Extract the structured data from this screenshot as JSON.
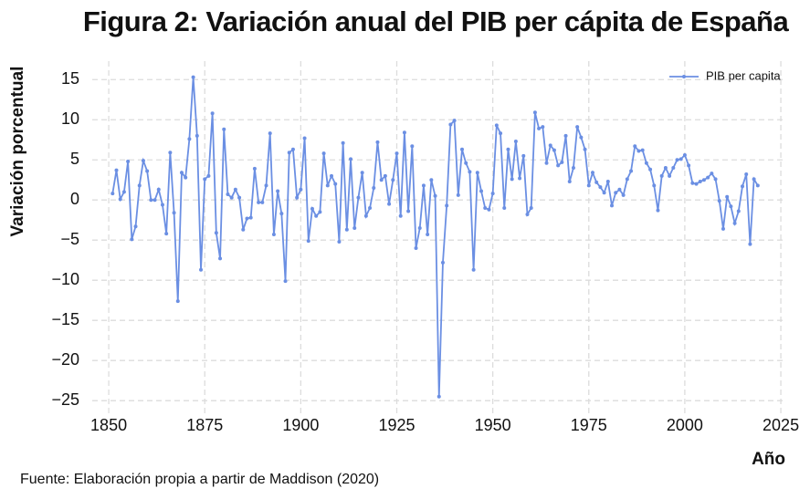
{
  "chart_data": {
    "type": "line",
    "title": "Figura 2: Variación anual del PIB per cápita de España",
    "xlabel": "Año",
    "ylabel": "Variación porcentual",
    "source": "Fuente: Elaboración propia a partir de Maddison (2020)",
    "x": [
      1851,
      1852,
      1853,
      1854,
      1855,
      1856,
      1857,
      1858,
      1859,
      1860,
      1861,
      1862,
      1863,
      1864,
      1865,
      1866,
      1867,
      1868,
      1869,
      1870,
      1871,
      1872,
      1873,
      1874,
      1875,
      1876,
      1877,
      1878,
      1879,
      1880,
      1881,
      1882,
      1883,
      1884,
      1885,
      1886,
      1887,
      1888,
      1889,
      1890,
      1891,
      1892,
      1893,
      1894,
      1895,
      1896,
      1897,
      1898,
      1899,
      1900,
      1901,
      1902,
      1903,
      1904,
      1905,
      1906,
      1907,
      1908,
      1909,
      1910,
      1911,
      1912,
      1913,
      1914,
      1915,
      1916,
      1917,
      1918,
      1919,
      1920,
      1921,
      1922,
      1923,
      1924,
      1925,
      1926,
      1927,
      1928,
      1929,
      1930,
      1931,
      1932,
      1933,
      1934,
      1935,
      1936,
      1937,
      1938,
      1939,
      1940,
      1941,
      1942,
      1943,
      1944,
      1945,
      1946,
      1947,
      1948,
      1949,
      1950,
      1951,
      1952,
      1953,
      1954,
      1955,
      1956,
      1957,
      1958,
      1959,
      1960,
      1961,
      1962,
      1963,
      1964,
      1965,
      1966,
      1967,
      1968,
      1969,
      1970,
      1971,
      1972,
      1973,
      1974,
      1975,
      1976,
      1977,
      1978,
      1979,
      1980,
      1981,
      1982,
      1983,
      1984,
      1985,
      1986,
      1987,
      1988,
      1989,
      1990,
      1991,
      1992,
      1993,
      1994,
      1995,
      1996,
      1997,
      1998,
      1999,
      2000,
      2001,
      2002,
      2003,
      2004,
      2005,
      2006,
      2007,
      2008,
      2009,
      2010,
      2011,
      2012,
      2013,
      2014,
      2015,
      2016,
      2017,
      2018,
      2019
    ],
    "series": [
      {
        "name": "PIB per capita",
        "color": "#6b8fe3",
        "values": [
          0.8,
          3.7,
          0.1,
          1.0,
          4.8,
          -4.9,
          -3.3,
          1.8,
          4.9,
          3.6,
          0.0,
          0.0,
          1.3,
          -0.6,
          -4.2,
          5.9,
          -1.6,
          -12.6,
          3.4,
          2.8,
          7.6,
          15.3,
          8.0,
          -8.7,
          2.6,
          3.0,
          10.8,
          -4.1,
          -7.3,
          8.8,
          0.7,
          0.3,
          1.3,
          0.3,
          -3.7,
          -2.3,
          -2.2,
          3.9,
          -0.3,
          -0.3,
          1.8,
          8.3,
          -4.3,
          1.1,
          -1.7,
          -10.1,
          5.9,
          6.3,
          0.3,
          1.3,
          7.7,
          -5.1,
          -1.1,
          -2.0,
          -1.5,
          5.8,
          1.8,
          3.0,
          2.0,
          -5.2,
          7.1,
          -3.7,
          5.1,
          -3.5,
          0.3,
          3.4,
          -2.0,
          -1.0,
          1.5,
          7.2,
          2.5,
          3.0,
          -0.5,
          2.5,
          5.8,
          -2.0,
          8.4,
          -1.4,
          6.7,
          -6.0,
          -3.5,
          1.8,
          -4.3,
          2.5,
          0.5,
          -24.5,
          -7.8,
          -0.7,
          9.4,
          9.9,
          0.6,
          6.3,
          4.6,
          3.5,
          -8.7,
          3.4,
          1.1,
          -1.0,
          -1.2,
          0.8,
          9.3,
          8.3,
          -1.0,
          6.3,
          2.6,
          7.3,
          2.7,
          5.5,
          -1.8,
          -1.0,
          10.9,
          8.9,
          9.1,
          4.6,
          6.8,
          6.2,
          4.3,
          4.7,
          8.0,
          2.3,
          4.0,
          9.1,
          7.8,
          6.3,
          1.8,
          3.4,
          2.2,
          1.6,
          0.9,
          2.3,
          -0.7,
          0.9,
          1.3,
          0.6,
          2.6,
          3.6,
          6.7,
          6.1,
          6.2,
          4.6,
          3.8,
          1.8,
          -1.3,
          3.0,
          4.0,
          3.0,
          4.0,
          5.0,
          5.1,
          5.6,
          4.3,
          2.1,
          2.0,
          2.3,
          2.5,
          2.8,
          3.3,
          2.6,
          -0.1,
          -3.6,
          0.4,
          -0.8,
          -2.9,
          -1.4,
          1.7,
          3.2,
          -5.5,
          2.6,
          1.8
        ]
      }
    ],
    "xlim": [
      1845.7,
      2025.7
    ],
    "ylim": [
      -26.8,
      17.3
    ],
    "xticks": [
      1850,
      1875,
      1900,
      1925,
      1950,
      1975,
      2000,
      2025
    ],
    "yticks": [
      15,
      10,
      5,
      0,
      {
        "value": -5,
        "label": "−5"
      },
      {
        "value": -10,
        "label": "−10"
      },
      {
        "value": -15,
        "label": "−15"
      },
      {
        "value": -20,
        "label": "−20"
      },
      {
        "value": -25,
        "label": "−25"
      }
    ],
    "grid": true,
    "legend": "upper right"
  }
}
